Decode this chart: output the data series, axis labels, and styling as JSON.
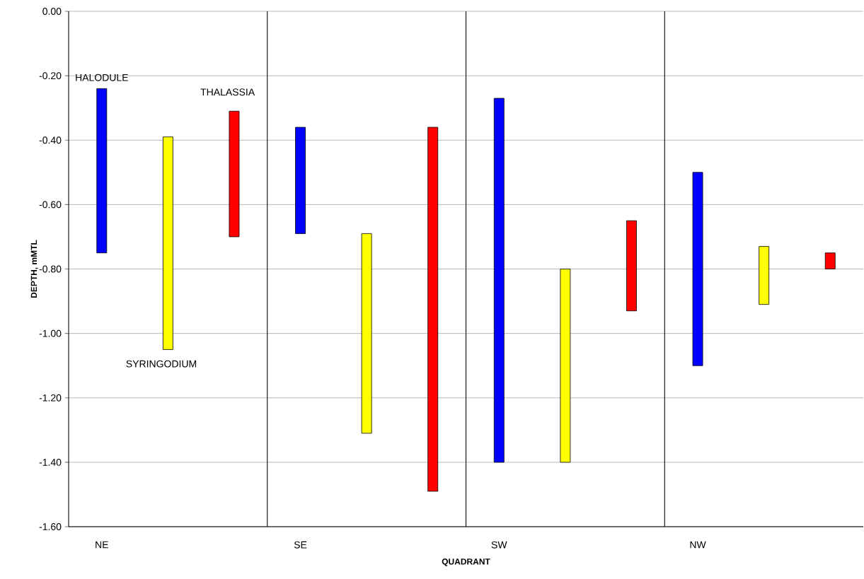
{
  "chart_data": {
    "type": "bar",
    "xlabel": "QUADRANT",
    "ylabel": "DEPTH, mMTL",
    "categories": [
      "NE",
      null,
      null,
      "SE",
      null,
      null,
      "SW",
      null,
      null,
      "NW",
      null,
      null
    ],
    "series": [
      {
        "name": "HALODULE",
        "color": "#0000ff",
        "base": [
          -0.75,
          null,
          null,
          -0.69,
          null,
          null,
          -1.4,
          null,
          null,
          -1.1,
          null,
          null
        ],
        "values": [
          0.51,
          null,
          null,
          0.33,
          null,
          null,
          1.13,
          null,
          null,
          0.6,
          null,
          null
        ]
      },
      {
        "name": "SYRINGODIUM",
        "color": "#ffff00",
        "base": [
          null,
          -1.05,
          null,
          null,
          -1.31,
          null,
          null,
          -1.4,
          null,
          null,
          -0.91,
          null
        ],
        "values": [
          null,
          0.66,
          null,
          null,
          0.62,
          null,
          null,
          0.6,
          null,
          null,
          0.18,
          null
        ]
      },
      {
        "name": "THALASSIA",
        "color": "#ff0000",
        "base": [
          null,
          null,
          -0.7,
          null,
          null,
          -1.49,
          null,
          null,
          -0.93,
          null,
          null,
          -0.8
        ],
        "values": [
          null,
          null,
          0.39,
          null,
          null,
          1.13,
          null,
          null,
          0.28,
          null,
          null,
          0.05
        ]
      }
    ],
    "ylim": [
      -1.6,
      0
    ],
    "yticks": [
      {
        "value": 0,
        "label": "0.00"
      },
      {
        "value": -0.2,
        "label": "-0.20"
      },
      {
        "value": -0.4,
        "label": "-0.40"
      },
      {
        "value": -0.6,
        "label": "-0.60"
      },
      {
        "value": -0.8,
        "label": "-0.80"
      },
      {
        "value": -1.0,
        "label": "-1.00"
      },
      {
        "value": -1.2,
        "label": "-1.20"
      },
      {
        "value": -1.4,
        "label": "-1.40"
      },
      {
        "value": -1.6,
        "label": "-1.60"
      }
    ],
    "grid": true
  }
}
